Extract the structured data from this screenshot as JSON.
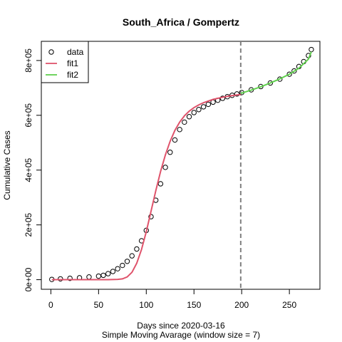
{
  "chart_data": {
    "type": "scatter",
    "title": "South_Africa / Gompertz",
    "xlabel": "Days since 2020-03-16",
    "subtitle": "Simple Moving Avarage (window size = 7)",
    "ylabel": "Cumulative Cases",
    "xlim": [
      -10,
      282
    ],
    "ylim": [
      -35000,
      870000
    ],
    "x_ticks": [
      0,
      50,
      100,
      150,
      200,
      250
    ],
    "x_tick_labels": [
      "0",
      "50",
      "100",
      "150",
      "200",
      "250"
    ],
    "y_ticks": [
      0,
      200000,
      400000,
      600000,
      800000
    ],
    "y_tick_labels": [
      "0e+00",
      "2e+05",
      "4e+05",
      "6e+05",
      "8e+05"
    ],
    "vline": {
      "x": 199,
      "style": "dashed",
      "color": "#808080"
    },
    "legend": {
      "position": "top-left",
      "entries": [
        {
          "label": "data",
          "symbol": "circle",
          "color": "#000000"
        },
        {
          "label": "fit1",
          "symbol": "line",
          "color": "#DF536B"
        },
        {
          "label": "fit2",
          "symbol": "line",
          "color": "#61D04F"
        }
      ]
    },
    "series": [
      {
        "name": "data",
        "kind": "points",
        "color": "#000000",
        "x": [
          1,
          10,
          20,
          30,
          40,
          50,
          55,
          60,
          65,
          70,
          75,
          80,
          85,
          90,
          95,
          100,
          105,
          110,
          115,
          120,
          125,
          130,
          135,
          140,
          145,
          150,
          155,
          160,
          165,
          170,
          175,
          180,
          185,
          190,
          195,
          200,
          210,
          220,
          230,
          240,
          250,
          255,
          260,
          265,
          270,
          273
        ],
        "y": [
          1000,
          3000,
          5000,
          7000,
          10000,
          13000,
          16000,
          22000,
          30000,
          40000,
          52000,
          67000,
          87000,
          112000,
          142000,
          180000,
          230000,
          290000,
          350000,
          410000,
          465000,
          510000,
          548000,
          575000,
          595000,
          610000,
          621000,
          631000,
          640000,
          648000,
          655000,
          662000,
          668000,
          673000,
          678000,
          683000,
          693000,
          705000,
          718000,
          732000,
          750000,
          762000,
          778000,
          796000,
          818000,
          840000
        ]
      },
      {
        "name": "fit1",
        "kind": "line",
        "color": "#DF536B",
        "x": [
          1,
          20,
          40,
          60,
          70,
          75,
          80,
          85,
          90,
          95,
          100,
          105,
          110,
          115,
          120,
          125,
          130,
          135,
          140,
          145,
          150,
          155,
          160,
          170,
          180,
          190,
          199
        ],
        "y": [
          0,
          0,
          0,
          100,
          1000,
          3000,
          10000,
          27000,
          60000,
          110000,
          175000,
          250000,
          325000,
          395000,
          455000,
          505000,
          545000,
          575000,
          598000,
          615000,
          628000,
          638000,
          646000,
          658000,
          666000,
          672000,
          676000
        ]
      },
      {
        "name": "fit2",
        "kind": "line",
        "color": "#61D04F",
        "x": [
          199,
          210,
          220,
          230,
          240,
          250,
          260,
          270,
          273
        ],
        "y": [
          680000,
          692000,
          704000,
          718000,
          733000,
          750000,
          772000,
          805000,
          832000
        ]
      }
    ]
  }
}
